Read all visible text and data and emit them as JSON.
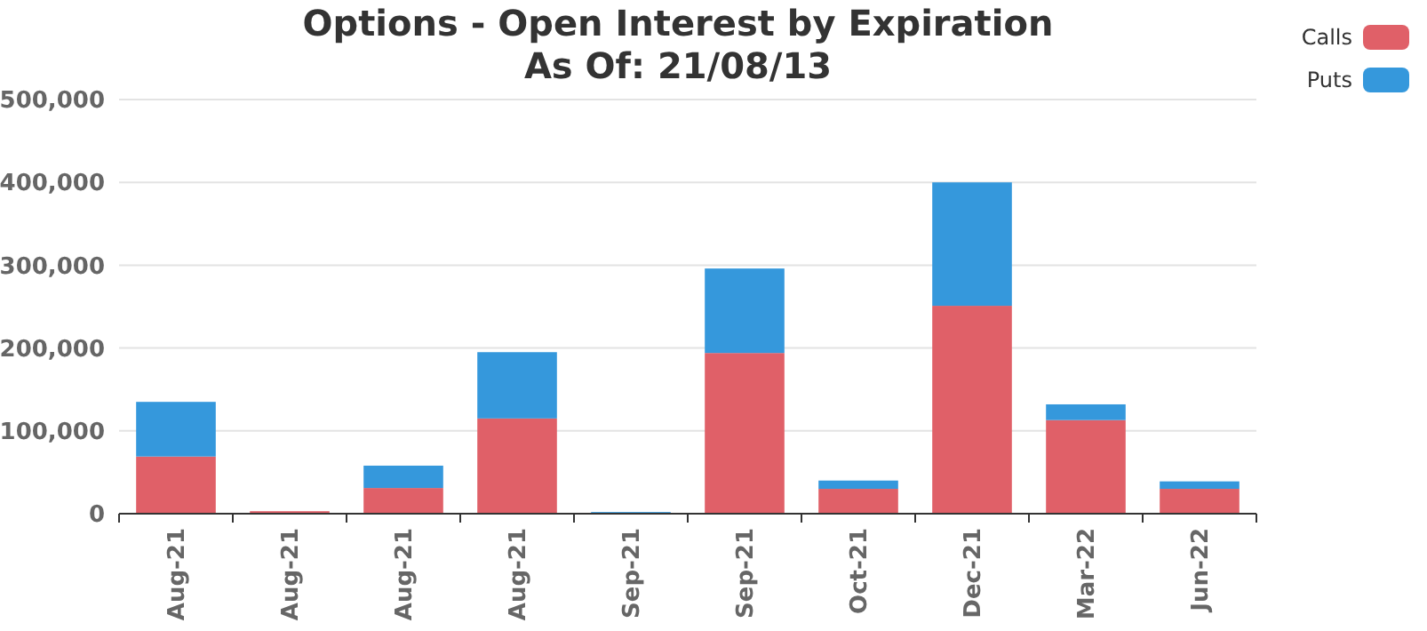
{
  "chart_data": {
    "type": "bar",
    "title": "Options - Open Interest by Expiration",
    "subtitle": "As Of: 21/08/13",
    "categories": [
      "Aug-21",
      "Aug-21",
      "Aug-21",
      "Aug-21",
      "Sep-21",
      "Sep-21",
      "Oct-21",
      "Dec-21",
      "Mar-22",
      "Jun-22"
    ],
    "stacked": true,
    "series": [
      {
        "name": "Calls",
        "color": "#e06068",
        "values": [
          69000,
          3000,
          31000,
          115000,
          0,
          194000,
          30000,
          251000,
          113000,
          30000
        ]
      },
      {
        "name": "Puts",
        "color": "#3598dc",
        "values": [
          66000,
          0,
          27000,
          80000,
          2000,
          102000,
          10000,
          149000,
          19000,
          9000
        ]
      }
    ],
    "ylim": [
      0,
      500000
    ],
    "yticks": [
      {
        "value": 0,
        "label": "0"
      },
      {
        "value": 100000,
        "label": "100,000"
      },
      {
        "value": 200000,
        "label": "200,000"
      },
      {
        "value": 300000,
        "label": "300,000"
      },
      {
        "value": 400000,
        "label": "400,000"
      },
      {
        "value": 500000,
        "label": "500,000"
      }
    ],
    "grid": "y",
    "legend": "top right"
  }
}
